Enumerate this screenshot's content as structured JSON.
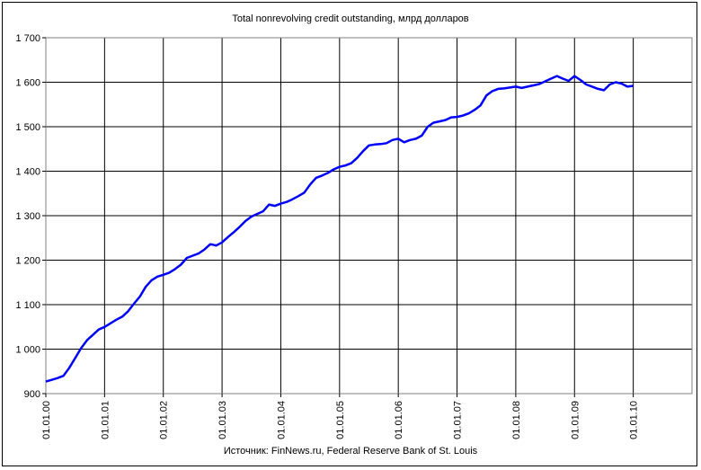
{
  "chart_data": {
    "type": "line",
    "title": "Total nonrevolving credit outstanding, млрд долларов",
    "source": "Источник: FinNews.ru, Federal Reserve Bank of St. Louis",
    "xlabel": "",
    "ylabel": "",
    "ylim": [
      900,
      1700
    ],
    "y_ticks": [
      "900",
      "1 000",
      "1 100",
      "1 200",
      "1 300",
      "1 400",
      "1 500",
      "1 600",
      "1 700"
    ],
    "x_ticks": [
      "01.01.00",
      "01.01.01",
      "01.01.02",
      "01.01.03",
      "01.01.04",
      "01.01.05",
      "01.01.06",
      "01.01.07",
      "01.01.08",
      "01.01.09",
      "01.01.10"
    ],
    "x_range_years": [
      2000,
      2011
    ],
    "grid": true,
    "legend": "none",
    "series": [
      {
        "color": "#0000ff",
        "x": [
          2000.0,
          2000.1,
          2000.2,
          2000.3,
          2000.4,
          2000.5,
          2000.6,
          2000.7,
          2000.8,
          2000.9,
          2001.0,
          2001.1,
          2001.2,
          2001.3,
          2001.4,
          2001.5,
          2001.6,
          2001.7,
          2001.8,
          2001.9,
          2002.0,
          2002.1,
          2002.2,
          2002.3,
          2002.4,
          2002.5,
          2002.6,
          2002.7,
          2002.8,
          2002.9,
          2003.0,
          2003.1,
          2003.2,
          2003.3,
          2003.4,
          2003.5,
          2003.6,
          2003.7,
          2003.8,
          2003.9,
          2004.0,
          2004.1,
          2004.2,
          2004.3,
          2004.4,
          2004.5,
          2004.6,
          2004.7,
          2004.8,
          2004.9,
          2005.0,
          2005.1,
          2005.2,
          2005.3,
          2005.4,
          2005.5,
          2005.6,
          2005.7,
          2005.8,
          2005.9,
          2006.0,
          2006.1,
          2006.2,
          2006.3,
          2006.4,
          2006.5,
          2006.6,
          2006.7,
          2006.8,
          2006.9,
          2007.0,
          2007.1,
          2007.2,
          2007.3,
          2007.4,
          2007.5,
          2007.6,
          2007.7,
          2007.8,
          2007.9,
          2008.0,
          2008.1,
          2008.2,
          2008.3,
          2008.4,
          2008.5,
          2008.6,
          2008.7,
          2008.8,
          2008.9,
          2009.0,
          2009.1,
          2009.2,
          2009.3,
          2009.4,
          2009.5,
          2009.6,
          2009.7,
          2009.8,
          2009.9,
          2010.0
        ],
        "values": [
          927,
          931,
          935,
          940,
          958,
          980,
          1002,
          1020,
          1032,
          1044,
          1050,
          1058,
          1066,
          1073,
          1085,
          1102,
          1118,
          1140,
          1155,
          1163,
          1167,
          1172,
          1180,
          1190,
          1205,
          1210,
          1215,
          1224,
          1236,
          1233,
          1240,
          1252,
          1263,
          1275,
          1288,
          1298,
          1304,
          1310,
          1325,
          1322,
          1327,
          1331,
          1337,
          1344,
          1352,
          1370,
          1385,
          1390,
          1396,
          1404,
          1410,
          1413,
          1418,
          1430,
          1445,
          1458,
          1460,
          1461,
          1463,
          1470,
          1473,
          1465,
          1470,
          1473,
          1480,
          1500,
          1509,
          1512,
          1515,
          1521,
          1522,
          1525,
          1530,
          1538,
          1548,
          1570,
          1580,
          1585,
          1586,
          1588,
          1590,
          1587,
          1590,
          1593,
          1596,
          1602,
          1608,
          1614,
          1608,
          1603,
          1614,
          1605,
          1595,
          1590,
          1585,
          1582,
          1595,
          1600,
          1597,
          1590,
          1592
        ]
      }
    ]
  }
}
